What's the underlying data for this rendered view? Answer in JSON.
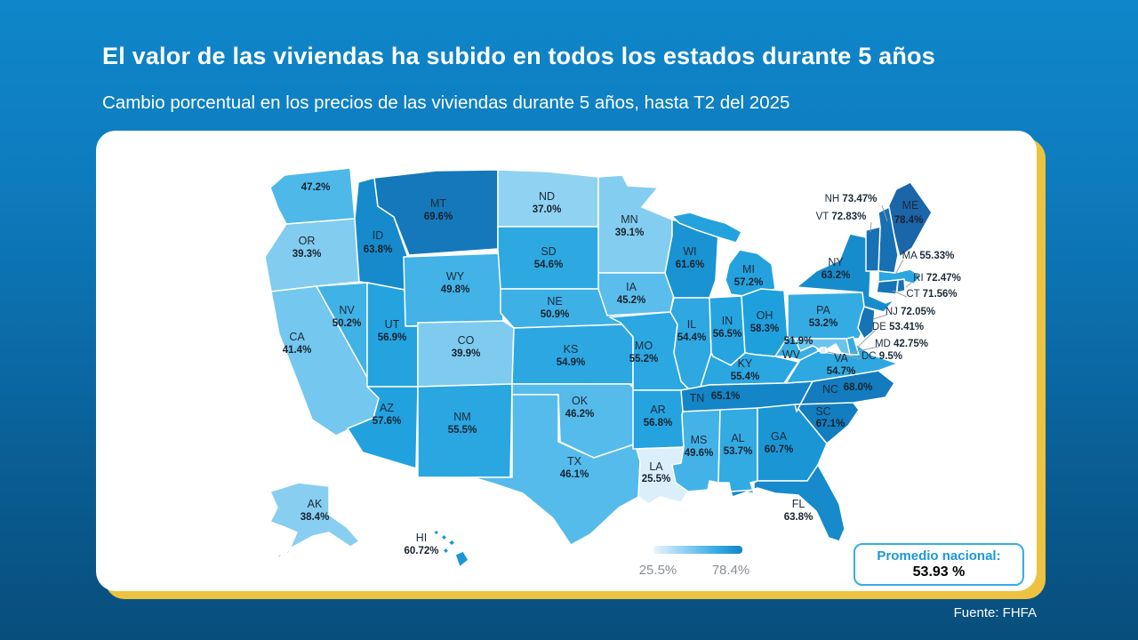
{
  "header": {
    "title": "El valor de las viviendas ha subido en todos los estados durante 5 años",
    "subtitle": "Cambio porcentual en los precios de las viviendas durante 5 años, hasta T2 del 2025"
  },
  "footer": {
    "source": "Fuente: FHFA"
  },
  "chart_data": {
    "type": "heatmap",
    "subtype": "us-state-choropleth",
    "title": "El valor de las viviendas ha subido en todos los estados durante 5 años",
    "subtitle": "Cambio porcentual en los precios de las viviendas durante 5 años, hasta T2 del 2025",
    "unit": "%",
    "legend": {
      "min": 25.5,
      "max": 78.4,
      "min_label": "25.5%",
      "max_label": "78.4%",
      "position": "bottom-center"
    },
    "colors": {
      "scale_light": "#dbeffb",
      "scale_dark": "#1b65a9",
      "background_top": "#0e82c6",
      "background_bottom": "#084e7c",
      "card_shadow_gold": "#edc23f",
      "accent_blue": "#1b98d8"
    },
    "national_average": {
      "label": "Promedio nacional:",
      "value": "53.93 %"
    },
    "source": "Fuente: FHFA",
    "states": [
      {
        "abbr": "WA",
        "value": 47.2,
        "display": "47.2%"
      },
      {
        "abbr": "OR",
        "value": 39.3,
        "display": "39.3%"
      },
      {
        "abbr": "CA",
        "value": 41.4,
        "display": "41.4%"
      },
      {
        "abbr": "NV",
        "value": 50.2,
        "display": "50.2%"
      },
      {
        "abbr": "ID",
        "value": 63.8,
        "display": "63.8%"
      },
      {
        "abbr": "MT",
        "value": 69.6,
        "display": "69.6%"
      },
      {
        "abbr": "WY",
        "value": 49.8,
        "display": "49.8%"
      },
      {
        "abbr": "UT",
        "value": 56.9,
        "display": "56.9%"
      },
      {
        "abbr": "CO",
        "value": 39.9,
        "display": "39.9%"
      },
      {
        "abbr": "AZ",
        "value": 57.6,
        "display": "57.6%"
      },
      {
        "abbr": "NM",
        "value": 55.5,
        "display": "55.5%"
      },
      {
        "abbr": "ND",
        "value": 37.0,
        "display": "37.0%"
      },
      {
        "abbr": "SD",
        "value": 54.6,
        "display": "54.6%"
      },
      {
        "abbr": "NE",
        "value": 50.9,
        "display": "50.9%"
      },
      {
        "abbr": "KS",
        "value": 54.9,
        "display": "54.9%"
      },
      {
        "abbr": "OK",
        "value": 46.2,
        "display": "46.2%"
      },
      {
        "abbr": "TX",
        "value": 46.1,
        "display": "46.1%"
      },
      {
        "abbr": "MN",
        "value": 39.1,
        "display": "39.1%"
      },
      {
        "abbr": "IA",
        "value": 45.2,
        "display": "45.2%"
      },
      {
        "abbr": "MO",
        "value": 55.2,
        "display": "55.2%"
      },
      {
        "abbr": "AR",
        "value": 56.8,
        "display": "56.8%"
      },
      {
        "abbr": "LA",
        "value": 25.5,
        "display": "25.5%"
      },
      {
        "abbr": "WI",
        "value": 61.6,
        "display": "61.6%"
      },
      {
        "abbr": "MI",
        "value": 57.2,
        "display": "57.2%"
      },
      {
        "abbr": "IL",
        "value": 54.4,
        "display": "54.4%"
      },
      {
        "abbr": "IN",
        "value": 56.5,
        "display": "56.5%"
      },
      {
        "abbr": "OH",
        "value": 58.3,
        "display": "58.3%"
      },
      {
        "abbr": "KY",
        "value": 55.4,
        "display": "55.4%"
      },
      {
        "abbr": "TN",
        "value": 65.1,
        "display": "65.1%"
      },
      {
        "abbr": "MS",
        "value": 49.6,
        "display": "49.6%"
      },
      {
        "abbr": "AL",
        "value": 53.7,
        "display": "53.7%"
      },
      {
        "abbr": "GA",
        "value": 60.7,
        "display": "60.7%"
      },
      {
        "abbr": "FL",
        "value": 63.8,
        "display": "63.8%"
      },
      {
        "abbr": "SC",
        "value": 67.1,
        "display": "67.1%"
      },
      {
        "abbr": "NC",
        "value": 68.0,
        "display": "68.0%"
      },
      {
        "abbr": "VA",
        "value": 54.7,
        "display": "54.7%"
      },
      {
        "abbr": "WV",
        "value": 51.9,
        "display": "51.9%"
      },
      {
        "abbr": "PA",
        "value": 53.2,
        "display": "53.2%"
      },
      {
        "abbr": "NY",
        "value": 63.2,
        "display": "63.2%"
      },
      {
        "abbr": "ME",
        "value": 78.4,
        "display": "78.4%"
      },
      {
        "abbr": "NH",
        "value": 73.47,
        "display": "73.47%"
      },
      {
        "abbr": "VT",
        "value": 72.83,
        "display": "72.83%"
      },
      {
        "abbr": "MA",
        "value": 55.33,
        "display": "55.33%"
      },
      {
        "abbr": "RI",
        "value": 72.47,
        "display": "72.47%"
      },
      {
        "abbr": "CT",
        "value": 71.56,
        "display": "71.56%"
      },
      {
        "abbr": "NJ",
        "value": 72.05,
        "display": "72.05%"
      },
      {
        "abbr": "DE",
        "value": 53.41,
        "display": "53.41%"
      },
      {
        "abbr": "MD",
        "value": 42.75,
        "display": "42.75%"
      },
      {
        "abbr": "DC",
        "value": 9.5,
        "display": "9.5%"
      },
      {
        "abbr": "AK",
        "value": 38.4,
        "display": "38.4%"
      },
      {
        "abbr": "HI",
        "value": 60.72,
        "display": "60.72%"
      }
    ]
  }
}
